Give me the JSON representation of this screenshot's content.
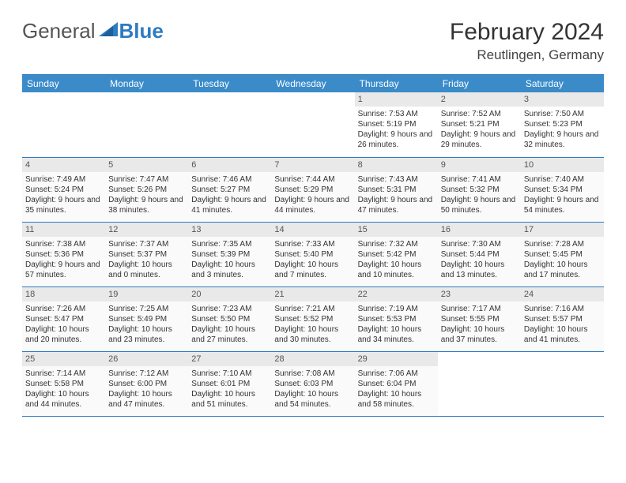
{
  "brand": {
    "part1": "General",
    "part2": "Blue"
  },
  "title": {
    "month": "February 2024",
    "location": "Reutlingen, Germany"
  },
  "colors": {
    "accent": "#3b8bc9",
    "logo_blue": "#2f7bc0",
    "daynum_bg": "#e9e9e9"
  },
  "calendar": {
    "type": "table",
    "columns": [
      "Sunday",
      "Monday",
      "Tuesday",
      "Wednesday",
      "Thursday",
      "Friday",
      "Saturday"
    ],
    "weeks": [
      [
        null,
        null,
        null,
        null,
        {
          "n": "1",
          "sr": "Sunrise: 7:53 AM",
          "ss": "Sunset: 5:19 PM",
          "dl": "Daylight: 9 hours and 26 minutes."
        },
        {
          "n": "2",
          "sr": "Sunrise: 7:52 AM",
          "ss": "Sunset: 5:21 PM",
          "dl": "Daylight: 9 hours and 29 minutes."
        },
        {
          "n": "3",
          "sr": "Sunrise: 7:50 AM",
          "ss": "Sunset: 5:23 PM",
          "dl": "Daylight: 9 hours and 32 minutes."
        }
      ],
      [
        {
          "n": "4",
          "sr": "Sunrise: 7:49 AM",
          "ss": "Sunset: 5:24 PM",
          "dl": "Daylight: 9 hours and 35 minutes."
        },
        {
          "n": "5",
          "sr": "Sunrise: 7:47 AM",
          "ss": "Sunset: 5:26 PM",
          "dl": "Daylight: 9 hours and 38 minutes."
        },
        {
          "n": "6",
          "sr": "Sunrise: 7:46 AM",
          "ss": "Sunset: 5:27 PM",
          "dl": "Daylight: 9 hours and 41 minutes."
        },
        {
          "n": "7",
          "sr": "Sunrise: 7:44 AM",
          "ss": "Sunset: 5:29 PM",
          "dl": "Daylight: 9 hours and 44 minutes."
        },
        {
          "n": "8",
          "sr": "Sunrise: 7:43 AM",
          "ss": "Sunset: 5:31 PM",
          "dl": "Daylight: 9 hours and 47 minutes."
        },
        {
          "n": "9",
          "sr": "Sunrise: 7:41 AM",
          "ss": "Sunset: 5:32 PM",
          "dl": "Daylight: 9 hours and 50 minutes."
        },
        {
          "n": "10",
          "sr": "Sunrise: 7:40 AM",
          "ss": "Sunset: 5:34 PM",
          "dl": "Daylight: 9 hours and 54 minutes."
        }
      ],
      [
        {
          "n": "11",
          "sr": "Sunrise: 7:38 AM",
          "ss": "Sunset: 5:36 PM",
          "dl": "Daylight: 9 hours and 57 minutes."
        },
        {
          "n": "12",
          "sr": "Sunrise: 7:37 AM",
          "ss": "Sunset: 5:37 PM",
          "dl": "Daylight: 10 hours and 0 minutes."
        },
        {
          "n": "13",
          "sr": "Sunrise: 7:35 AM",
          "ss": "Sunset: 5:39 PM",
          "dl": "Daylight: 10 hours and 3 minutes."
        },
        {
          "n": "14",
          "sr": "Sunrise: 7:33 AM",
          "ss": "Sunset: 5:40 PM",
          "dl": "Daylight: 10 hours and 7 minutes."
        },
        {
          "n": "15",
          "sr": "Sunrise: 7:32 AM",
          "ss": "Sunset: 5:42 PM",
          "dl": "Daylight: 10 hours and 10 minutes."
        },
        {
          "n": "16",
          "sr": "Sunrise: 7:30 AM",
          "ss": "Sunset: 5:44 PM",
          "dl": "Daylight: 10 hours and 13 minutes."
        },
        {
          "n": "17",
          "sr": "Sunrise: 7:28 AM",
          "ss": "Sunset: 5:45 PM",
          "dl": "Daylight: 10 hours and 17 minutes."
        }
      ],
      [
        {
          "n": "18",
          "sr": "Sunrise: 7:26 AM",
          "ss": "Sunset: 5:47 PM",
          "dl": "Daylight: 10 hours and 20 minutes."
        },
        {
          "n": "19",
          "sr": "Sunrise: 7:25 AM",
          "ss": "Sunset: 5:49 PM",
          "dl": "Daylight: 10 hours and 23 minutes."
        },
        {
          "n": "20",
          "sr": "Sunrise: 7:23 AM",
          "ss": "Sunset: 5:50 PM",
          "dl": "Daylight: 10 hours and 27 minutes."
        },
        {
          "n": "21",
          "sr": "Sunrise: 7:21 AM",
          "ss": "Sunset: 5:52 PM",
          "dl": "Daylight: 10 hours and 30 minutes."
        },
        {
          "n": "22",
          "sr": "Sunrise: 7:19 AM",
          "ss": "Sunset: 5:53 PM",
          "dl": "Daylight: 10 hours and 34 minutes."
        },
        {
          "n": "23",
          "sr": "Sunrise: 7:17 AM",
          "ss": "Sunset: 5:55 PM",
          "dl": "Daylight: 10 hours and 37 minutes."
        },
        {
          "n": "24",
          "sr": "Sunrise: 7:16 AM",
          "ss": "Sunset: 5:57 PM",
          "dl": "Daylight: 10 hours and 41 minutes."
        }
      ],
      [
        {
          "n": "25",
          "sr": "Sunrise: 7:14 AM",
          "ss": "Sunset: 5:58 PM",
          "dl": "Daylight: 10 hours and 44 minutes."
        },
        {
          "n": "26",
          "sr": "Sunrise: 7:12 AM",
          "ss": "Sunset: 6:00 PM",
          "dl": "Daylight: 10 hours and 47 minutes."
        },
        {
          "n": "27",
          "sr": "Sunrise: 7:10 AM",
          "ss": "Sunset: 6:01 PM",
          "dl": "Daylight: 10 hours and 51 minutes."
        },
        {
          "n": "28",
          "sr": "Sunrise: 7:08 AM",
          "ss": "Sunset: 6:03 PM",
          "dl": "Daylight: 10 hours and 54 minutes."
        },
        {
          "n": "29",
          "sr": "Sunrise: 7:06 AM",
          "ss": "Sunset: 6:04 PM",
          "dl": "Daylight: 10 hours and 58 minutes."
        },
        null,
        null
      ]
    ]
  }
}
